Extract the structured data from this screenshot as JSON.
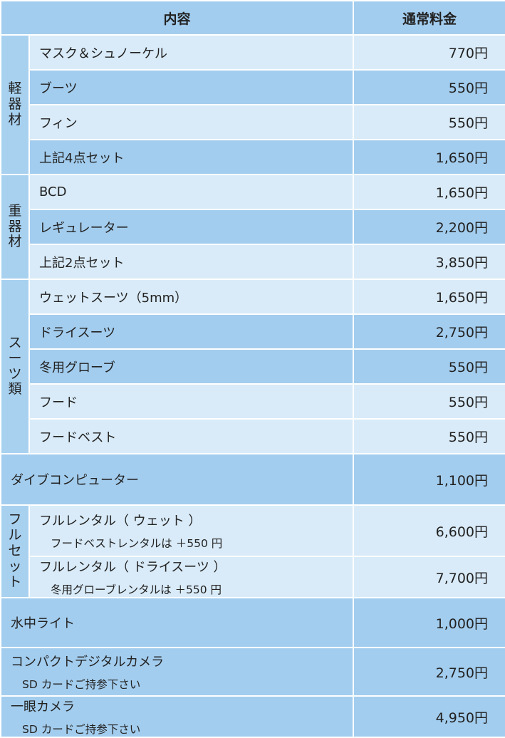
{
  "header": {
    "content": "内容",
    "price": "通常料金"
  },
  "groups": [
    {
      "label": "軽\n器\n材",
      "items": [
        {
          "name": "マスク＆シュノーケル",
          "price": "770円"
        },
        {
          "name": "ブーツ",
          "price": "550円"
        },
        {
          "name": "フィン",
          "price": "550円"
        },
        {
          "name": "上記4点セット",
          "price": "1,650円"
        }
      ]
    },
    {
      "label": "重\n器\n材",
      "items": [
        {
          "name": "BCD",
          "price": "1,650円"
        },
        {
          "name": "レギュレーター",
          "price": "2,200円"
        },
        {
          "name": "上記2点セット",
          "price": "3,850円"
        }
      ]
    },
    {
      "label": "ス\nー\nツ\n類",
      "items": [
        {
          "name": "ウェットスーツ（5mm）",
          "price": "1,650円"
        },
        {
          "name": "ドライスーツ",
          "price": "2,750円"
        },
        {
          "name": "冬用グローブ",
          "price": "550円"
        },
        {
          "name": "フード",
          "price": "550円"
        },
        {
          "name": "フードベスト",
          "price": "550円"
        }
      ]
    },
    {
      "label": "",
      "items": [
        {
          "name": "ダイブコンピューター",
          "price": "1,100円"
        }
      ]
    },
    {
      "label": "フ\nル\nセ\nッ\nト",
      "items": [
        {
          "name": "フルレンタル（ ウェット ）",
          "sub": "フードベストレンタルは ＋550 円",
          "price": "6,600円"
        },
        {
          "name": "フルレンタル（ ドライスーツ ）",
          "sub": "冬用グローブレンタルは ＋550 円",
          "price": "7,700円"
        }
      ]
    },
    {
      "label": "",
      "items": [
        {
          "name": "水中ライト",
          "price": "1,000円"
        }
      ]
    },
    {
      "label": "",
      "items": [
        {
          "name": "コンパクトデジタルカメラ",
          "sub": "SD カードご持参下さい",
          "price": "2,750円"
        }
      ]
    },
    {
      "label": "",
      "items": [
        {
          "name": "一眼カメラ",
          "sub": "SD カードご持参下さい",
          "price": "4,950円"
        }
      ]
    }
  ]
}
